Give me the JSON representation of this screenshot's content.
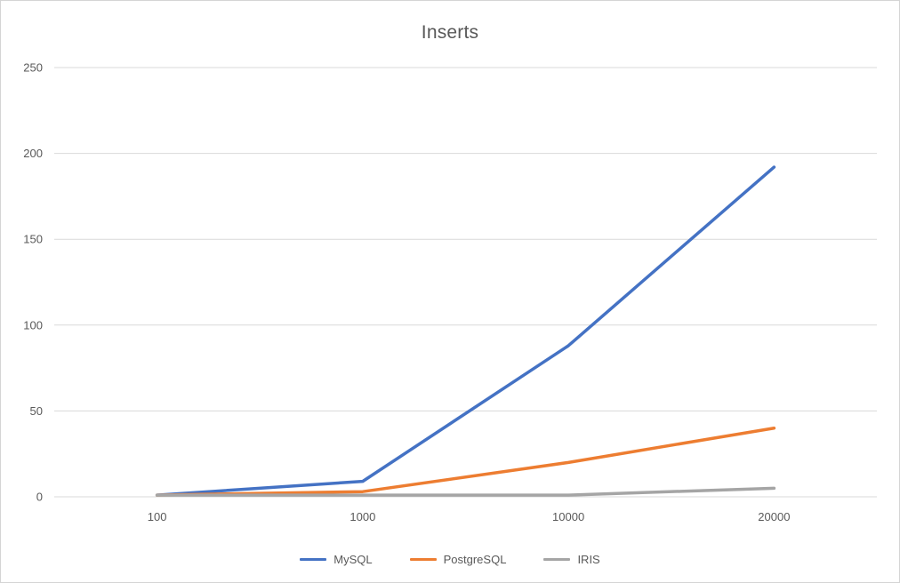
{
  "chart_data": {
    "type": "line",
    "title": "Inserts",
    "categories": [
      "100",
      "1000",
      "10000",
      "20000"
    ],
    "series": [
      {
        "name": "MySQL",
        "color": "#4472C4",
        "values": [
          1,
          9,
          88,
          192
        ]
      },
      {
        "name": "PostgreSQL",
        "color": "#ED7D31",
        "values": [
          1,
          3,
          20,
          40
        ]
      },
      {
        "name": "IRIS",
        "color": "#A5A5A5",
        "values": [
          1,
          1,
          1,
          5
        ]
      }
    ],
    "xlabel": "",
    "ylabel": "",
    "ylim": [
      0,
      250
    ],
    "ytick_step": 50,
    "grid": true,
    "legend_position": "bottom",
    "colors": {
      "grid": "#D9D9D9",
      "axis": "#D9D9D9",
      "tick_label": "#595959",
      "title": "#595959"
    }
  }
}
